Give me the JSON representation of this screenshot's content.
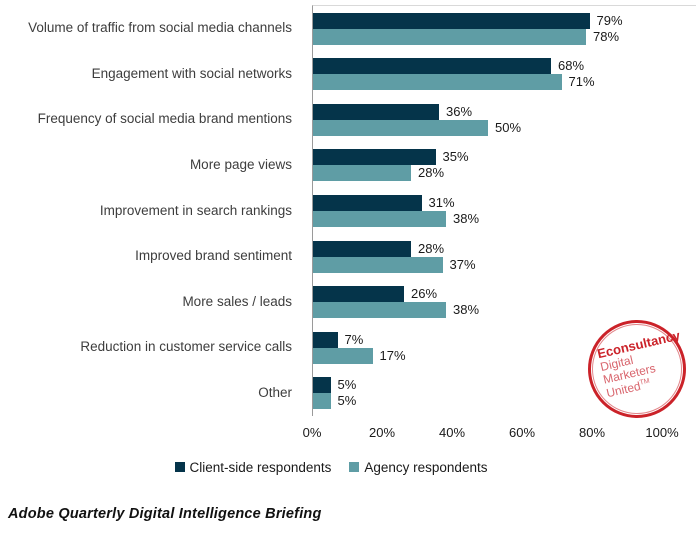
{
  "chart_data": {
    "type": "bar",
    "orientation": "horizontal",
    "categories": [
      "Volume of traffic from social media channels",
      "Engagement with social networks",
      "Frequency of social media brand mentions",
      "More page views",
      "Improvement in search rankings",
      "Improved brand sentiment",
      "More sales / leads",
      "Reduction in customer service calls",
      "Other"
    ],
    "series": [
      {
        "name": "Client-side respondents",
        "color": "#05344a",
        "values": [
          79,
          68,
          36,
          35,
          31,
          28,
          26,
          7,
          5
        ]
      },
      {
        "name": "Agency respondents",
        "color": "#5f9da5",
        "values": [
          78,
          71,
          50,
          28,
          38,
          37,
          38,
          17,
          5
        ]
      }
    ],
    "value_suffix": "%",
    "xlim": [
      0,
      100
    ],
    "x_ticks": [
      "0%",
      "20%",
      "40%",
      "60%",
      "80%",
      "100%"
    ],
    "grid": false,
    "legend_position": "bottom"
  },
  "legend": {
    "client_label": "Client-side respondents",
    "agency_label": "Agency respondents"
  },
  "logo": {
    "line1": "Econsultancy",
    "line2": "Digital",
    "line3": "Marketers",
    "line4": "United",
    "trademark": "TM",
    "ring_color": "#cb2229"
  },
  "caption": "Adobe Quarterly Digital Intelligence Briefing",
  "colors": {
    "client_bar": "#05344a",
    "agency_bar": "#5f9da5",
    "axis_line": "#9a9a9a",
    "plot_top_border": "#d9d9d9",
    "category_text": "#3d3d3d",
    "value_text": "#1a1a1a",
    "logo_red": "#cb2229",
    "logo_light_red": "#d9666e",
    "background": "#ffffff"
  }
}
